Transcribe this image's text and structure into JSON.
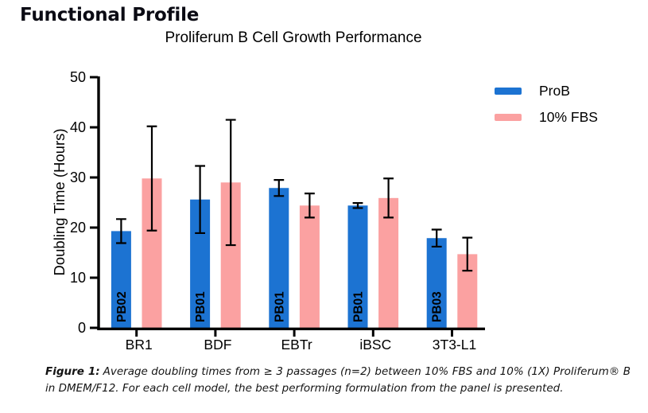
{
  "header": {
    "title": "Functional Profile"
  },
  "chart_data": {
    "type": "bar",
    "title": "Proliferum B Cell Growth Performance",
    "ylabel": "Doubling Time (Hours)",
    "xlabel": "",
    "ylim": [
      0,
      50
    ],
    "yticks": [
      0,
      10,
      20,
      30,
      40,
      50
    ],
    "categories": [
      "BR1",
      "BDF",
      "EBTr",
      "iBSC",
      "3T3-L1"
    ],
    "series": [
      {
        "name": "ProB",
        "color": "#1c73d2",
        "values": [
          19.3,
          25.6,
          27.9,
          24.4,
          17.9
        ],
        "errors": [
          2.4,
          6.7,
          1.6,
          0.5,
          1.7
        ],
        "bar_labels": [
          "PB02",
          "PB01",
          "PB01",
          "PB01",
          "PB03"
        ]
      },
      {
        "name": "10% FBS",
        "color": "#fba1a1",
        "values": [
          29.8,
          29.0,
          24.4,
          25.9,
          14.7
        ],
        "errors": [
          10.4,
          12.5,
          2.4,
          3.9,
          3.3
        ],
        "bar_labels": [
          "",
          "",
          "",
          "",
          ""
        ]
      }
    ],
    "error_bars": true,
    "grid": false,
    "legend_position": "top-right"
  },
  "caption": {
    "label": "Figure 1:",
    "text": "Average doubling times from ≥ 3 passages (n=2) between 10% FBS and 10% (1X) Proliferum® B in DMEM/F12. For each cell model, the best performing formulation from the panel is presented."
  }
}
